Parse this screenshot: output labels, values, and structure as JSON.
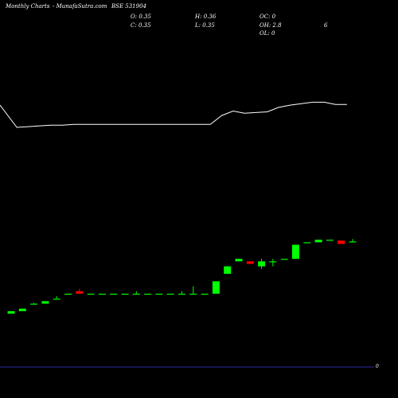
{
  "header": {
    "title": "Monthly Charts",
    "source": "- MunafaSutra.com",
    "symbol": "BSE 531904"
  },
  "ohlc": {
    "open": "O: 0.35",
    "high": "H: 0.36",
    "close": "C: 0.35",
    "low": "L: 0.35",
    "oc": "OC: 0",
    "oh": "OH: 2.8",
    "ol": "OL: 0",
    "extra": "6"
  },
  "axis": {
    "right_label": "0"
  },
  "colors": {
    "up": "#00ff00",
    "down": "#ff0000",
    "line": "#ffffff",
    "axis": "#2a2aa8",
    "background": "#000000"
  },
  "chart_data": {
    "type": "candlestick",
    "price_range": [
      0,
      0.42
    ],
    "line_range": [
      0,
      1
    ],
    "candles": [
      {
        "o": 0.006,
        "h": 0.006,
        "l": 0.0,
        "c": 0.0,
        "dir": "up"
      },
      {
        "o": 0.012,
        "h": 0.012,
        "l": 0.006,
        "c": 0.006,
        "dir": "up"
      },
      {
        "o": 0.024,
        "h": 0.026,
        "l": 0.024,
        "c": 0.024,
        "dir": "up"
      },
      {
        "o": 0.03,
        "h": 0.03,
        "l": 0.024,
        "c": 0.024,
        "dir": "up"
      },
      {
        "o": 0.036,
        "h": 0.042,
        "l": 0.036,
        "c": 0.036,
        "dir": "up"
      },
      {
        "o": 0.048,
        "h": 0.048,
        "l": 0.048,
        "c": 0.048,
        "dir": "up"
      },
      {
        "o": 0.054,
        "h": 0.06,
        "l": 0.048,
        "c": 0.048,
        "dir": "down"
      },
      {
        "o": 0.048,
        "h": 0.048,
        "l": 0.048,
        "c": 0.048,
        "dir": "up"
      },
      {
        "o": 0.048,
        "h": 0.048,
        "l": 0.048,
        "c": 0.048,
        "dir": "up"
      },
      {
        "o": 0.048,
        "h": 0.048,
        "l": 0.048,
        "c": 0.048,
        "dir": "up"
      },
      {
        "o": 0.048,
        "h": 0.048,
        "l": 0.048,
        "c": 0.048,
        "dir": "up"
      },
      {
        "o": 0.048,
        "h": 0.054,
        "l": 0.048,
        "c": 0.048,
        "dir": "up"
      },
      {
        "o": 0.048,
        "h": 0.048,
        "l": 0.048,
        "c": 0.048,
        "dir": "up"
      },
      {
        "o": 0.048,
        "h": 0.048,
        "l": 0.048,
        "c": 0.048,
        "dir": "up"
      },
      {
        "o": 0.048,
        "h": 0.048,
        "l": 0.048,
        "c": 0.048,
        "dir": "up"
      },
      {
        "o": 0.048,
        "h": 0.054,
        "l": 0.048,
        "c": 0.048,
        "dir": "up"
      },
      {
        "o": 0.048,
        "h": 0.066,
        "l": 0.048,
        "c": 0.048,
        "dir": "up"
      },
      {
        "o": 0.048,
        "h": 0.048,
        "l": 0.048,
        "c": 0.048,
        "dir": "up"
      },
      {
        "o": 0.078,
        "h": 0.078,
        "l": 0.048,
        "c": 0.048,
        "dir": "up"
      },
      {
        "o": 0.114,
        "h": 0.114,
        "l": 0.096,
        "c": 0.096,
        "dir": "up"
      },
      {
        "o": 0.132,
        "h": 0.132,
        "l": 0.126,
        "c": 0.126,
        "dir": "up"
      },
      {
        "o": 0.126,
        "h": 0.126,
        "l": 0.12,
        "c": 0.12,
        "dir": "down"
      },
      {
        "o": 0.126,
        "h": 0.132,
        "l": 0.108,
        "c": 0.114,
        "dir": "up"
      },
      {
        "o": 0.126,
        "h": 0.132,
        "l": 0.114,
        "c": 0.126,
        "dir": "up"
      },
      {
        "o": 0.132,
        "h": 0.132,
        "l": 0.132,
        "c": 0.132,
        "dir": "up"
      },
      {
        "o": 0.166,
        "h": 0.166,
        "l": 0.132,
        "c": 0.132,
        "dir": "up"
      },
      {
        "o": 0.172,
        "h": 0.172,
        "l": 0.172,
        "c": 0.172,
        "dir": "up"
      },
      {
        "o": 0.178,
        "h": 0.178,
        "l": 0.172,
        "c": 0.172,
        "dir": "up"
      },
      {
        "o": 0.178,
        "h": 0.178,
        "l": 0.178,
        "c": 0.178,
        "dir": "up"
      },
      {
        "o": 0.176,
        "h": 0.176,
        "l": 0.168,
        "c": 0.168,
        "dir": "down"
      },
      {
        "o": 0.174,
        "h": 0.18,
        "l": 0.172,
        "c": 0.174,
        "dir": "up"
      }
    ],
    "line": [
      0.3,
      0.0,
      0.01,
      0.02,
      0.03,
      0.03,
      0.04,
      0.04,
      0.04,
      0.04,
      0.04,
      0.04,
      0.04,
      0.04,
      0.04,
      0.04,
      0.04,
      0.04,
      0.04,
      0.16,
      0.22,
      0.19,
      0.2,
      0.21,
      0.27,
      0.3,
      0.32,
      0.34,
      0.34,
      0.31,
      0.31
    ]
  }
}
